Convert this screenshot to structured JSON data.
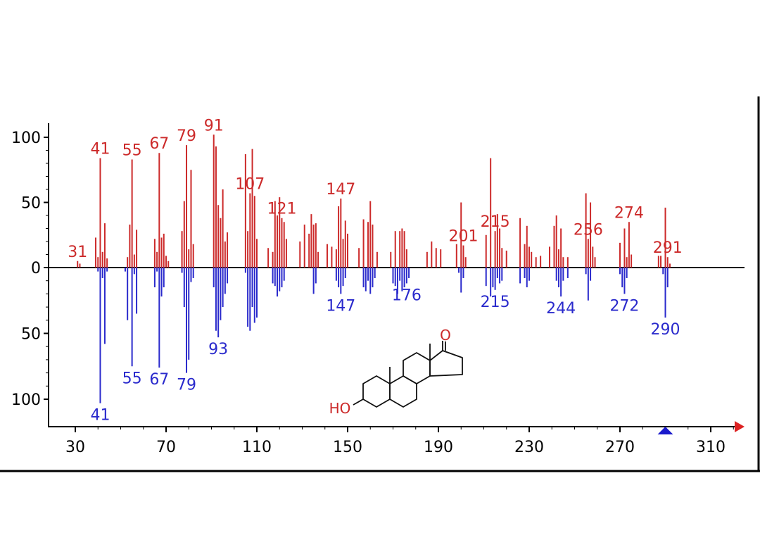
{
  "chart_data": {
    "type": "bar",
    "title": "",
    "xlabel": "",
    "ylabel": "",
    "xlim": [
      20,
      327
    ],
    "ylim_top": [
      0,
      100
    ],
    "ylim_bottom": [
      0,
      100
    ],
    "x_ticks": [
      30,
      70,
      110,
      150,
      190,
      230,
      270,
      310
    ],
    "y_ticks_top": [
      100,
      50,
      0
    ],
    "y_ticks_bottom": [
      50,
      100
    ],
    "y_tick_labels": [
      "100",
      "50",
      "0",
      "50",
      "100"
    ],
    "x_tick_labels": [
      "30",
      "70",
      "110",
      "150",
      "190",
      "230",
      "270",
      "310"
    ],
    "grid": false,
    "colors": {
      "top": "#cc2a2a",
      "bottom": "#2a2acc",
      "axis": "#000000",
      "marker_top": "#dd2222",
      "marker_bottom": "#1a1acc"
    },
    "series": [
      {
        "position": "top",
        "x": [
          31,
          32,
          39,
          40,
          41,
          42,
          43,
          44,
          53,
          54,
          55,
          56,
          57,
          65,
          66,
          67,
          68,
          69,
          70,
          71,
          77,
          78,
          79,
          80,
          81,
          82,
          91,
          92,
          93,
          94,
          95,
          96,
          97,
          105,
          106,
          107,
          108,
          109,
          110,
          115,
          117,
          118,
          119,
          120,
          121,
          122,
          123,
          129,
          131,
          133,
          134,
          135,
          136,
          137,
          141,
          143,
          145,
          146,
          147,
          148,
          149,
          150,
          155,
          157,
          159,
          160,
          161,
          163,
          169,
          171,
          173,
          174,
          175,
          176,
          185,
          187,
          189,
          191,
          198,
          200,
          201,
          202,
          211,
          213,
          215,
          216,
          217,
          218,
          220,
          226,
          228,
          229,
          230,
          231,
          233,
          235,
          239,
          241,
          242,
          243,
          244,
          245,
          247,
          255,
          256,
          257,
          258,
          259,
          270,
          272,
          273,
          274,
          275,
          287,
          288,
          290,
          291,
          292
        ],
        "values": [
          5,
          3,
          23,
          8,
          84,
          12,
          34,
          7,
          8,
          33,
          83,
          10,
          29,
          22,
          12,
          88,
          23,
          26,
          9,
          5,
          28,
          51,
          94,
          14,
          75,
          18,
          102,
          93,
          48,
          38,
          60,
          20,
          27,
          87,
          28,
          57,
          91,
          55,
          22,
          15,
          12,
          51,
          40,
          54,
          38,
          35,
          22,
          20,
          33,
          26,
          41,
          33,
          34,
          12,
          18,
          16,
          14,
          47,
          53,
          22,
          36,
          26,
          15,
          37,
          35,
          51,
          33,
          12,
          12,
          28,
          28,
          30,
          28,
          14,
          12,
          20,
          15,
          14,
          18,
          50,
          17,
          8,
          25,
          84,
          28,
          41,
          30,
          15,
          13,
          38,
          18,
          32,
          16,
          12,
          8,
          9,
          16,
          32,
          40,
          14,
          30,
          8,
          8,
          57,
          22,
          50,
          16,
          8,
          19,
          30,
          8,
          35,
          10,
          9,
          9,
          46,
          8,
          3
        ],
        "peak_labels": [
          {
            "x": 31,
            "label": "31"
          },
          {
            "x": 41,
            "label": "41"
          },
          {
            "x": 55,
            "label": "55"
          },
          {
            "x": 67,
            "label": "67"
          },
          {
            "x": 79,
            "label": "79"
          },
          {
            "x": 91,
            "label": "91"
          },
          {
            "x": 107,
            "label": "107"
          },
          {
            "x": 121,
            "label": "121"
          },
          {
            "x": 147,
            "label": "147"
          },
          {
            "x": 201,
            "label": "201"
          },
          {
            "x": 215,
            "label": "215"
          },
          {
            "x": 256,
            "label": "256"
          },
          {
            "x": 274,
            "label": "274"
          },
          {
            "x": 291,
            "label": "291"
          }
        ]
      },
      {
        "position": "bottom",
        "x": [
          40,
          41,
          42,
          43,
          44,
          52,
          53,
          55,
          56,
          57,
          65,
          66,
          67,
          68,
          69,
          77,
          78,
          79,
          80,
          81,
          82,
          91,
          92,
          93,
          94,
          95,
          96,
          97,
          105,
          106,
          107,
          108,
          109,
          110,
          117,
          118,
          119,
          120,
          121,
          122,
          135,
          136,
          145,
          146,
          147,
          148,
          149,
          157,
          158,
          159,
          160,
          161,
          162,
          170,
          171,
          172,
          173,
          174,
          175,
          176,
          177,
          199,
          200,
          201,
          211,
          213,
          214,
          215,
          216,
          217,
          218,
          226,
          228,
          229,
          230,
          242,
          243,
          244,
          245,
          247,
          255,
          256,
          257,
          270,
          271,
          272,
          273,
          289,
          290,
          291
        ],
        "values": [
          3,
          103,
          8,
          58,
          3,
          3,
          40,
          75,
          5,
          35,
          15,
          3,
          76,
          22,
          15,
          4,
          30,
          80,
          70,
          11,
          8,
          15,
          48,
          53,
          40,
          30,
          20,
          12,
          4,
          45,
          48,
          30,
          42,
          38,
          12,
          14,
          22,
          18,
          15,
          10,
          20,
          12,
          10,
          15,
          20,
          14,
          8,
          15,
          18,
          10,
          20,
          15,
          8,
          12,
          14,
          20,
          10,
          18,
          15,
          12,
          8,
          4,
          19,
          8,
          14,
          22,
          15,
          17,
          8,
          12,
          10,
          12,
          8,
          15,
          10,
          10,
          15,
          22,
          10,
          8,
          5,
          25,
          10,
          5,
          15,
          20,
          8,
          5,
          38,
          15
        ],
        "peak_labels": [
          {
            "x": 41,
            "label": "41"
          },
          {
            "x": 55,
            "label": "55"
          },
          {
            "x": 67,
            "label": "67"
          },
          {
            "x": 79,
            "label": "79"
          },
          {
            "x": 93,
            "label": "93"
          },
          {
            "x": 147,
            "label": "147"
          },
          {
            "x": 176,
            "label": "176"
          },
          {
            "x": 215,
            "label": "215"
          },
          {
            "x": 244,
            "label": "244"
          },
          {
            "x": 272,
            "label": "272"
          },
          {
            "x": 290,
            "label": "290"
          }
        ]
      }
    ],
    "structure_labels": {
      "ketone": "O",
      "hydroxyl": "HO"
    },
    "markers": {
      "bottom_triangle_x": 290
    }
  }
}
